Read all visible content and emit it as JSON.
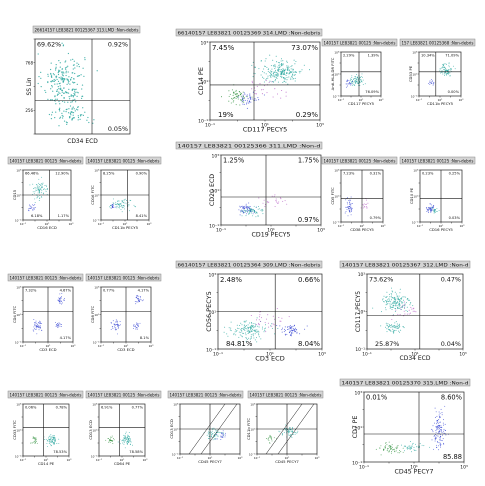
{
  "figure": {
    "background": "#ffffff",
    "colors": {
      "teal": "#1fa39a",
      "blue": "#2c3bd0",
      "purple": "#b050c0",
      "green": "#2c8f3a",
      "axis": "#222222",
      "header": "#d4d4d4"
    }
  },
  "chart_data": [
    {
      "type": "scatter",
      "name": "A",
      "header": "26614157 LE83821 00125367 313.LMD :Non-debris",
      "xlabel": "CD34 ECD",
      "ylabel": "SS Lin",
      "ticks_log": false,
      "xlim": [
        0,
        1023
      ],
      "ylim": [
        0,
        1023
      ],
      "quadrants": {
        "tl": "69.62%",
        "tr": "0.92%",
        "bl": "",
        "br": "0.05%"
      },
      "gates": {
        "x": 0.6,
        "y": 0.35
      },
      "clusters": [
        {
          "color": "teal",
          "x": 0.3,
          "y": 0.55,
          "sx": 0.22,
          "sy": 0.3,
          "n": 220
        },
        {
          "color": "teal",
          "x": 0.4,
          "y": 0.2,
          "sx": 0.2,
          "sy": 0.1,
          "n": 60
        }
      ]
    },
    {
      "type": "scatter",
      "name": "B",
      "header": "66140157 LE83821 00125369 314.LMD :Non-debris",
      "xlabel": "CD117 PECY5",
      "ylabel": "CD14 PE",
      "ticks_log": true,
      "xlim": [
        0.1,
        1000
      ],
      "ylim": [
        0.1,
        1000
      ],
      "quadrants": {
        "tl": "7.45%",
        "tr": "73.07%",
        "bl": "19%",
        "br": "0.29%"
      },
      "gates": {
        "x": 0.4,
        "y": 0.45
      },
      "clusters": [
        {
          "color": "teal",
          "x": 0.65,
          "y": 0.62,
          "sx": 0.2,
          "sy": 0.15,
          "n": 220
        },
        {
          "color": "green",
          "x": 0.25,
          "y": 0.3,
          "sx": 0.1,
          "sy": 0.1,
          "n": 60
        },
        {
          "color": "blue",
          "x": 0.35,
          "y": 0.28,
          "sx": 0.1,
          "sy": 0.08,
          "n": 40
        },
        {
          "color": "purple",
          "x": 0.5,
          "y": 0.4,
          "sx": 0.18,
          "sy": 0.12,
          "n": 25
        }
      ]
    },
    {
      "type": "scatter",
      "name": "C1",
      "header": "140157 LE83821 00125 :Non-debris",
      "xlabel": "CD117 PECY5",
      "ylabel": "Anti-HLA-DR FITC",
      "ticks_log": true,
      "xlim": [
        0.1,
        1000
      ],
      "ylim": [
        0.1,
        1000
      ],
      "quadrants": {
        "tl": "2.29%",
        "tr": "1.39%",
        "bl": "",
        "br": "76.09%"
      },
      "gates": {
        "x": 0.45,
        "y": 0.55
      },
      "clusters": [
        {
          "color": "teal",
          "x": 0.4,
          "y": 0.35,
          "sx": 0.18,
          "sy": 0.12,
          "n": 80
        },
        {
          "color": "blue",
          "x": 0.2,
          "y": 0.3,
          "sx": 0.08,
          "sy": 0.08,
          "n": 20
        }
      ]
    },
    {
      "type": "scatter",
      "name": "C2",
      "header": "157 LE83821 00125368 :Non-debris",
      "xlabel": "CD11b PECY5",
      "ylabel": "CD33 PE",
      "ticks_log": true,
      "xlim": [
        0.1,
        1000
      ],
      "ylim": [
        0.1,
        1000
      ],
      "quadrants": {
        "tl": "10.34%",
        "tr": "71.09%",
        "bl": "",
        "br": "0.00%"
      },
      "gates": {
        "x": 0.4,
        "y": 0.55
      },
      "clusters": [
        {
          "color": "teal",
          "x": 0.65,
          "y": 0.6,
          "sx": 0.15,
          "sy": 0.15,
          "n": 80
        },
        {
          "color": "blue",
          "x": 0.3,
          "y": 0.3,
          "sx": 0.06,
          "sy": 0.06,
          "n": 15
        }
      ]
    },
    {
      "type": "scatter",
      "name": "D1",
      "header": "140157 LE83821 00125 :Non-debris",
      "xlabel": "CD16 ECD",
      "ylabel": "CD15",
      "ticks_log": true,
      "xlim": [
        0.1,
        1000
      ],
      "ylim": [
        0.1,
        1000
      ],
      "quadrants": {
        "tl": "66.46%",
        "tr": "12.90%",
        "bl": "6.18%",
        "br": "1.17%"
      },
      "gates": {
        "x": 0.55,
        "y": 0.5
      },
      "clusters": [
        {
          "color": "teal",
          "x": 0.35,
          "y": 0.6,
          "sx": 0.2,
          "sy": 0.18,
          "n": 80
        },
        {
          "color": "blue",
          "x": 0.2,
          "y": 0.25,
          "sx": 0.08,
          "sy": 0.08,
          "n": 20
        }
      ]
    },
    {
      "type": "scatter",
      "name": "D2",
      "header": "140157 LE83821 00125 :Non-debris",
      "xlabel": "CD11b PECY5",
      "ylabel": "CD16 FITC",
      "ticks_log": true,
      "xlim": [
        0.1,
        1000
      ],
      "ylim": [
        0.1,
        1000
      ],
      "quadrants": {
        "tl": "8.25%",
        "tr": "0.90%",
        "bl": "",
        "br": "8.41%"
      },
      "gates": {
        "x": 0.55,
        "y": 0.5
      },
      "clusters": [
        {
          "color": "teal",
          "x": 0.4,
          "y": 0.3,
          "sx": 0.22,
          "sy": 0.1,
          "n": 70
        },
        {
          "color": "blue",
          "x": 0.25,
          "y": 0.28,
          "sx": 0.06,
          "sy": 0.06,
          "n": 15
        }
      ]
    },
    {
      "type": "scatter",
      "name": "E",
      "header": "140157 LE83821 00125366 311.LMD :Non-d",
      "xlabel": "CD19 PECY5",
      "ylabel": "CD20 ECD",
      "ticks_log": true,
      "xlim": [
        0.1,
        1000
      ],
      "ylim": [
        0.1,
        1000
      ],
      "quadrants": {
        "tl": "1.25%",
        "tr": "1.75%",
        "bl": "",
        "br": "0.97%"
      },
      "gates": {
        "x": 0.45,
        "y": 0.4
      },
      "clusters": [
        {
          "color": "blue",
          "x": 0.25,
          "y": 0.22,
          "sx": 0.08,
          "sy": 0.08,
          "n": 60
        },
        {
          "color": "teal",
          "x": 0.32,
          "y": 0.2,
          "sx": 0.1,
          "sy": 0.06,
          "n": 60
        },
        {
          "color": "purple",
          "x": 0.5,
          "y": 0.35,
          "sx": 0.15,
          "sy": 0.12,
          "n": 25
        }
      ]
    },
    {
      "type": "scatter",
      "name": "F1",
      "header": "140157 LE83821 00125 :Non-debris",
      "xlabel": "CD38 PECY5",
      "ylabel": "CD5 FITC",
      "ticks_log": true,
      "xlim": [
        0.1,
        1000
      ],
      "ylim": [
        0.1,
        1000
      ],
      "quadrants": {
        "tl": "7.23%",
        "tr": "0.31%",
        "bl": "",
        "br": "0.79%"
      },
      "gates": {
        "x": 0.5,
        "y": 0.45
      },
      "clusters": [
        {
          "color": "blue",
          "x": 0.2,
          "y": 0.3,
          "sx": 0.08,
          "sy": 0.15,
          "n": 50
        },
        {
          "color": "purple",
          "x": 0.6,
          "y": 0.35,
          "sx": 0.12,
          "sy": 0.1,
          "n": 15
        }
      ]
    },
    {
      "type": "scatter",
      "name": "F2",
      "header": "140157 LE83821 00125 :Non-debris",
      "xlabel": "CD16 PECY5",
      "ylabel": "CD10 PE",
      "ticks_log": true,
      "xlim": [
        0.1,
        1000
      ],
      "ylim": [
        0.1,
        1000
      ],
      "quadrants": {
        "tl": "0.23%",
        "tr": "0.25%",
        "bl": "",
        "br": "0.03%"
      },
      "gates": {
        "x": 0.5,
        "y": 0.45
      },
      "clusters": [
        {
          "color": "blue",
          "x": 0.25,
          "y": 0.25,
          "sx": 0.1,
          "sy": 0.08,
          "n": 45
        },
        {
          "color": "teal",
          "x": 0.35,
          "y": 0.22,
          "sx": 0.08,
          "sy": 0.06,
          "n": 20
        }
      ]
    },
    {
      "type": "scatter",
      "name": "G1",
      "header": "140157 LE83821 00125 :Non-debris",
      "xlabel": "CD3 ECD",
      "ylabel": "CD4 FITC",
      "ticks_log": true,
      "xlim": [
        0.1,
        1000
      ],
      "ylim": [
        0.1,
        1000
      ],
      "quadrants": {
        "tl": "7.32%",
        "tr": "4.67%",
        "bl": "",
        "br": "4.17%"
      },
      "gates": {
        "x": 0.5,
        "y": 0.55
      },
      "clusters": [
        {
          "color": "blue",
          "x": 0.3,
          "y": 0.3,
          "sx": 0.1,
          "sy": 0.1,
          "n": 45
        },
        {
          "color": "blue",
          "x": 0.75,
          "y": 0.75,
          "sx": 0.08,
          "sy": 0.08,
          "n": 30
        },
        {
          "color": "blue",
          "x": 0.7,
          "y": 0.3,
          "sx": 0.08,
          "sy": 0.06,
          "n": 20
        }
      ]
    },
    {
      "type": "scatter",
      "name": "G2",
      "header": "140157 LE83821 00125 :Non-debris",
      "xlabel": "CD3 ECD",
      "ylabel": "CD8 FITC",
      "ticks_log": true,
      "xlim": [
        0.1,
        1000
      ],
      "ylim": [
        0.1,
        1000
      ],
      "quadrants": {
        "tl": "0.77%",
        "tr": "4.17%",
        "bl": "",
        "br": "8.1%"
      },
      "gates": {
        "x": 0.5,
        "y": 0.55
      },
      "clusters": [
        {
          "color": "blue",
          "x": 0.3,
          "y": 0.3,
          "sx": 0.1,
          "sy": 0.1,
          "n": 40
        },
        {
          "color": "blue",
          "x": 0.75,
          "y": 0.78,
          "sx": 0.08,
          "sy": 0.08,
          "n": 30
        },
        {
          "color": "blue",
          "x": 0.72,
          "y": 0.3,
          "sx": 0.08,
          "sy": 0.06,
          "n": 20
        }
      ]
    },
    {
      "type": "scatter",
      "name": "H",
      "header": "66140157 LE83821 00125364 309.LMD :Non-debris",
      "xlabel": "CD3 ECD",
      "ylabel": "CD56 PECY5",
      "ticks_log": true,
      "xlim": [
        0.1,
        1000
      ],
      "ylim": [
        0.1,
        1000
      ],
      "quadrants": {
        "tl": "2.48%",
        "tr": "0.66%",
        "bl": "84.81%",
        "br": "8.04%"
      },
      "gates": {
        "x": 0.55,
        "y": 0.5
      },
      "clusters": [
        {
          "color": "teal",
          "x": 0.3,
          "y": 0.25,
          "sx": 0.18,
          "sy": 0.12,
          "n": 150
        },
        {
          "color": "blue",
          "x": 0.7,
          "y": 0.25,
          "sx": 0.1,
          "sy": 0.08,
          "n": 60
        },
        {
          "color": "purple",
          "x": 0.45,
          "y": 0.4,
          "sx": 0.2,
          "sy": 0.15,
          "n": 30
        }
      ]
    },
    {
      "type": "scatter",
      "name": "I",
      "header": "140157 LE83821 00125367 312.LMD :Non-d",
      "xlabel": "CD34 ECD",
      "ylabel": "CD117 PECY5",
      "ticks_log": true,
      "xlim": [
        0.1,
        1000
      ],
      "ylim": [
        0.1,
        1000
      ],
      "quadrants": {
        "tl": "73.62%",
        "tr": "0.47%",
        "bl": "25.87%",
        "br": "0.04%"
      },
      "gates": {
        "x": 0.55,
        "y": 0.45
      },
      "clusters": [
        {
          "color": "teal",
          "x": 0.3,
          "y": 0.62,
          "sx": 0.15,
          "sy": 0.15,
          "n": 150
        },
        {
          "color": "teal",
          "x": 0.28,
          "y": 0.28,
          "sx": 0.12,
          "sy": 0.08,
          "n": 60
        },
        {
          "color": "purple",
          "x": 0.4,
          "y": 0.5,
          "sx": 0.15,
          "sy": 0.12,
          "n": 25
        }
      ]
    },
    {
      "type": "scatter",
      "name": "J1",
      "header": "140157 LE83821 00125 :Non-debris",
      "xlabel": "CD14 PE",
      "ylabel": "CD33 FITC",
      "ticks_log": true,
      "xlim": [
        0.1,
        1000
      ],
      "ylim": [
        0.1,
        1000
      ],
      "quadrants": {
        "tl": "0.06%",
        "tr": "0.78%",
        "bl": "",
        "br": "78.53%"
      },
      "gates": {
        "x": 0.45,
        "y": 0.55
      },
      "clusters": [
        {
          "color": "teal",
          "x": 0.62,
          "y": 0.3,
          "sx": 0.12,
          "sy": 0.1,
          "n": 70
        },
        {
          "color": "green",
          "x": 0.25,
          "y": 0.3,
          "sx": 0.08,
          "sy": 0.08,
          "n": 25
        }
      ]
    },
    {
      "type": "scatter",
      "name": "J2",
      "header": "140157 LE83821 00125 :Non-debris",
      "xlabel": "CD64 PE",
      "ylabel": "CD13 ECD",
      "ticks_log": true,
      "xlim": [
        0.1,
        1000
      ],
      "ylim": [
        0.1,
        1000
      ],
      "quadrants": {
        "tl": "6.91%",
        "tr": "0.77%",
        "bl": "",
        "br": "78.58%"
      },
      "gates": {
        "x": 0.45,
        "y": 0.55
      },
      "clusters": [
        {
          "color": "teal",
          "x": 0.6,
          "y": 0.32,
          "sx": 0.12,
          "sy": 0.1,
          "n": 70
        },
        {
          "color": "green",
          "x": 0.25,
          "y": 0.3,
          "sx": 0.08,
          "sy": 0.08,
          "n": 25
        }
      ]
    },
    {
      "type": "scatter",
      "name": "J3",
      "header": "140157 LE83821 00125 :Non-debris",
      "xlabel": "CD45 PECY7",
      "ylabel": "CD13 ECD",
      "ticks_log": true,
      "xlim": [
        0.1,
        1000
      ],
      "ylim": [
        0.1,
        1000
      ],
      "quadrants": {
        "tl": "",
        "tr": "",
        "bl": "",
        "br": ""
      },
      "gates": {
        "x": 0.5,
        "y": 0.5
      },
      "diagonal": true,
      "clusters": [
        {
          "color": "teal",
          "x": 0.55,
          "y": 0.4,
          "sx": 0.15,
          "sy": 0.12,
          "n": 60
        },
        {
          "color": "blue",
          "x": 0.7,
          "y": 0.35,
          "sx": 0.08,
          "sy": 0.08,
          "n": 20
        }
      ]
    },
    {
      "type": "scatter",
      "name": "J4",
      "header": "140157 LE83821 00125 :Non-debris",
      "xlabel": "CD45 PECY7",
      "ylabel": "CD11b FITC",
      "ticks_log": true,
      "xlim": [
        0.1,
        1000
      ],
      "ylim": [
        0.1,
        1000
      ],
      "quadrants": {
        "tl": "",
        "tr": "",
        "bl": "",
        "br": ""
      },
      "gates": {
        "x": 0.5,
        "y": 0.5
      },
      "diagonal": true,
      "clusters": [
        {
          "color": "teal",
          "x": 0.55,
          "y": 0.45,
          "sx": 0.15,
          "sy": 0.12,
          "n": 60
        },
        {
          "color": "green",
          "x": 0.25,
          "y": 0.3,
          "sx": 0.08,
          "sy": 0.08,
          "n": 20
        }
      ]
    },
    {
      "type": "scatter",
      "name": "K",
      "header": "140157 LE83821 00125370 315.LMD :Non-d",
      "xlabel": "CD45 PECY7",
      "ylabel": "CD7 PE",
      "ticks_log": true,
      "xlim": [
        0.1,
        1000
      ],
      "ylim": [
        0.1,
        1000
      ],
      "quadrants": {
        "tl": "0.01%",
        "tr": "8.60%",
        "bl": "",
        "br": "85.88"
      },
      "gates": {
        "x": 0.55,
        "y": 0.4
      },
      "clusters": [
        {
          "color": "blue",
          "x": 0.75,
          "y": 0.45,
          "sx": 0.06,
          "sy": 0.25,
          "n": 120
        },
        {
          "color": "green",
          "x": 0.25,
          "y": 0.2,
          "sx": 0.12,
          "sy": 0.08,
          "n": 60
        },
        {
          "color": "teal",
          "x": 0.5,
          "y": 0.22,
          "sx": 0.12,
          "sy": 0.06,
          "n": 40
        }
      ]
    }
  ]
}
